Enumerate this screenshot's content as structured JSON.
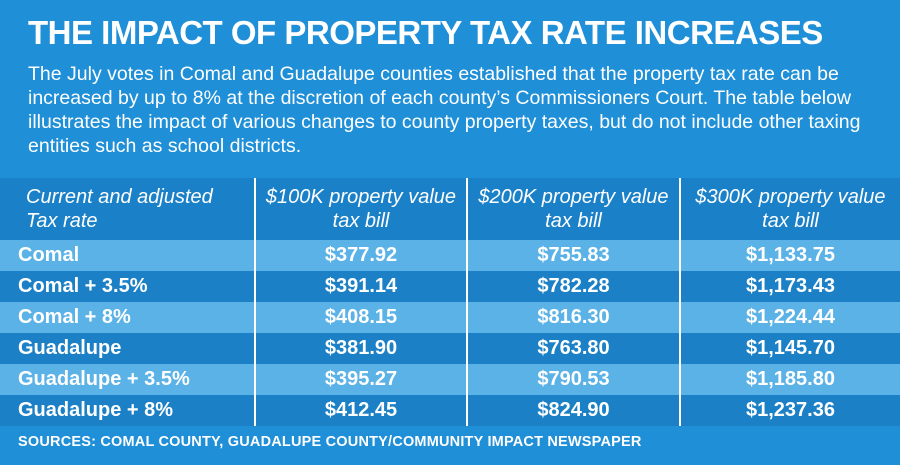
{
  "title": "THE IMPACT OF PROPERTY TAX RATE INCREASES",
  "intro": "The July votes in Comal and Guadalupe counties established that the property tax rate can be increased by up to 8% at the discretion of each county’s Commissioners Court. The table below illustrates the impact of various changes to county property taxes, but do not include other taxing entities such as school districts.",
  "chart_data": {
    "type": "table",
    "title": "THE IMPACT OF PROPERTY TAX RATE INCREASES",
    "columns": [
      "Current and adjusted Tax rate",
      "$100K property value tax bill",
      "$200K property value tax bill",
      "$300K property value tax bill"
    ],
    "rows": [
      [
        "Comal",
        "$377.92",
        "$755.83",
        "$1,133.75"
      ],
      [
        "Comal + 3.5%",
        "$391.14",
        "$782.28",
        "$1,173.43"
      ],
      [
        "Comal + 8%",
        "$408.15",
        "$816.30",
        "$1,224.44"
      ],
      [
        "Guadalupe",
        "$381.90",
        "$763.80",
        "$1,145.70"
      ],
      [
        "Guadalupe + 3.5%",
        "$395.27",
        "$790.53",
        "$1,185.80"
      ],
      [
        "Guadalupe + 8%",
        "$412.45",
        "$824.90",
        "$1,237.36"
      ]
    ]
  },
  "source": "SOURCES: COMAL COUNTY, GUADALUPE COUNTY/COMMUNITY IMPACT NEWSPAPER",
  "colors": {
    "background": "#1f8fd8",
    "header_band": "#1a80c8",
    "row_light": "#5bb2e7",
    "row_dark": "#1b80c6",
    "text": "#ffffff"
  }
}
